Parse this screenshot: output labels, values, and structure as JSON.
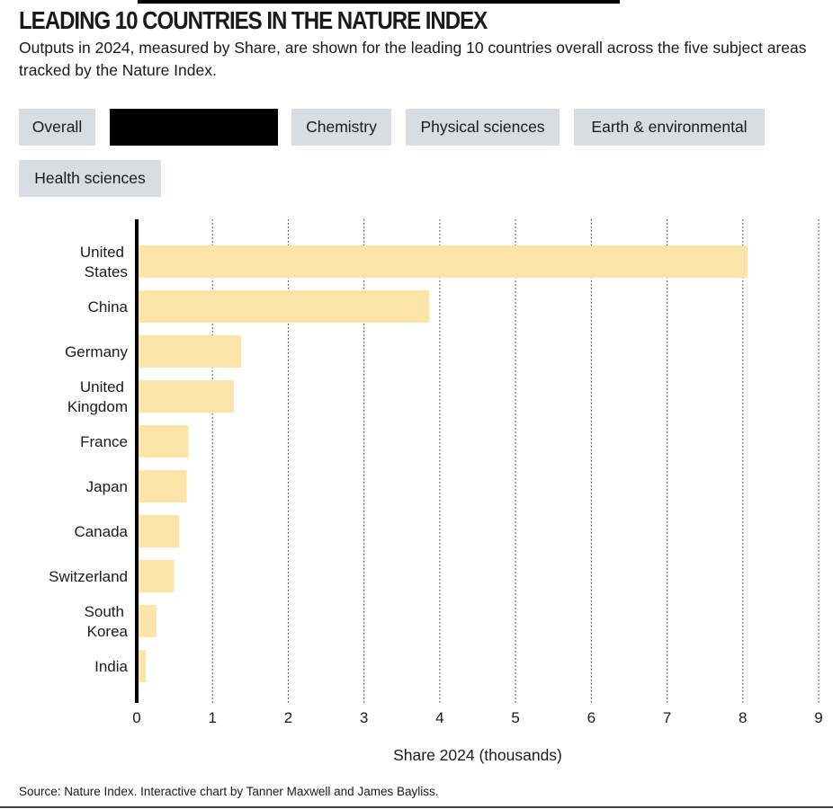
{
  "title": "LEADING 10 COUNTRIES IN THE NATURE INDEX",
  "subtitle": "Outputs in 2024, measured by Share, are shown for the leading 10 countries overall across the five subject areas tracked by the Nature Index.",
  "tabs": [
    {
      "label": "Overall"
    },
    {
      "label": ""
    },
    {
      "label": "Chemistry"
    },
    {
      "label": "Physical sciences"
    },
    {
      "label": "Earth & environmental"
    },
    {
      "label": "Health sciences"
    }
  ],
  "source": "Source: Nature Index. Interactive chart by Tanner Maxwell and James Bayliss.",
  "colors": {
    "bar": "#fce4a8",
    "axis": "#000000",
    "grid": "#333333"
  },
  "chart_data": {
    "type": "bar",
    "orientation": "horizontal",
    "categories": [
      [
        "United",
        "States"
      ],
      [
        "China"
      ],
      [
        "Germany"
      ],
      [
        "United",
        "Kingdom"
      ],
      [
        "France"
      ],
      [
        "Japan"
      ],
      [
        "Canada"
      ],
      [
        "Switzerland"
      ],
      [
        "South",
        "Korea"
      ],
      [
        "India"
      ]
    ],
    "values": [
      8.06,
      3.86,
      1.38,
      1.28,
      0.68,
      0.66,
      0.56,
      0.49,
      0.26,
      0.12
    ],
    "xlabel": "Share 2024 (thousands)",
    "ylabel": "",
    "xlim": [
      0,
      9
    ],
    "xticks": [
      "0",
      "1",
      "2",
      "3",
      "4",
      "5",
      "6",
      "7",
      "8",
      "9"
    ],
    "grid": true,
    "grid_style": "dotted-vertical"
  }
}
